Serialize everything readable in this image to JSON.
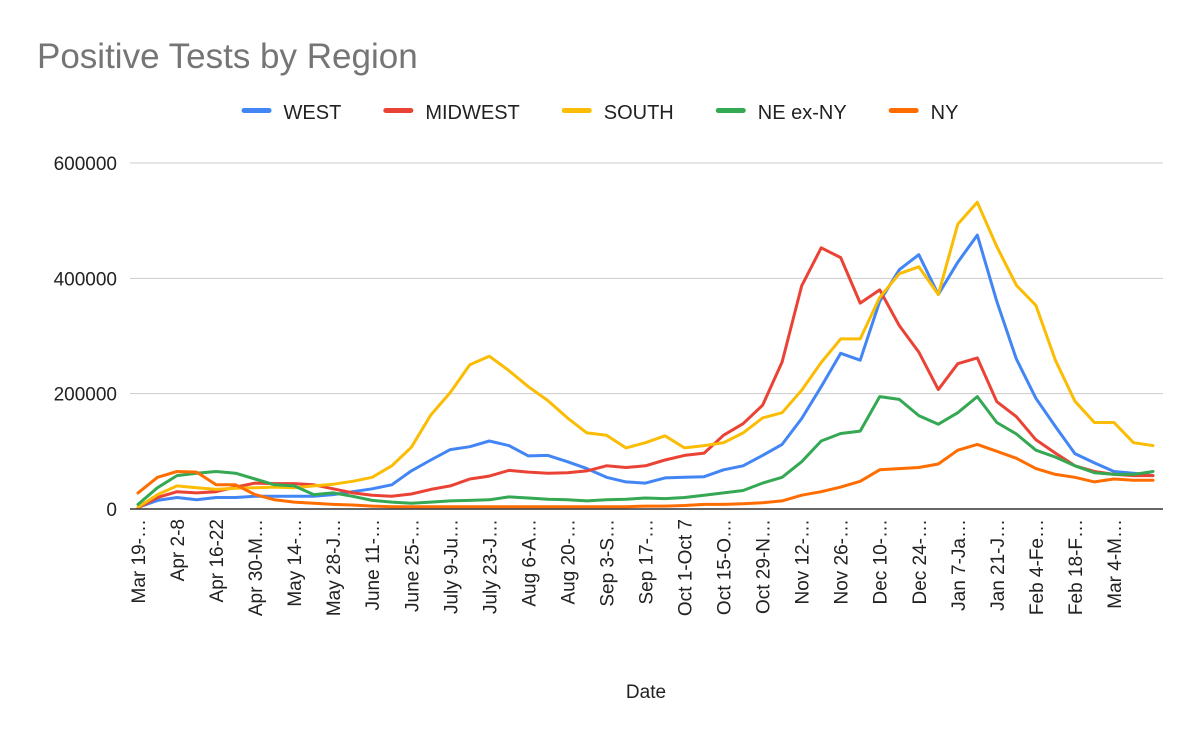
{
  "chart_data": {
    "type": "line",
    "title": "Positive Tests by Region",
    "xlabel": "Date",
    "ylabel": "",
    "ylim": [
      0,
      600000
    ],
    "yticks": [
      0,
      200000,
      400000,
      600000
    ],
    "ytick_labels": [
      "0",
      "200000",
      "400000",
      "600000"
    ],
    "x_tick_labels": [
      "Mar 19-…",
      "Apr 2-8",
      "Apr 16-22",
      "Apr 30-M…",
      "May 14-…",
      "May 28-J…",
      "June 11-…",
      "June 25-…",
      "July 9-Ju…",
      "July 23-J…",
      "Aug 6-A…",
      "Aug 20-…",
      "Sep 3-S…",
      "Sep 17-…",
      "Oct 1-Oct 7",
      "Oct 15-O…",
      "Oct 29-N…",
      "Nov 12-…",
      "Nov 26-…",
      "Dec 10-…",
      "Dec 24-…",
      "Jan 7-Ja…",
      "Jan 21-J…",
      "Feb 4-Fe…",
      "Feb 18-F…",
      "Mar 4-M…"
    ],
    "grid": true,
    "legend_position": "top",
    "series": [
      {
        "name": "WEST",
        "color": "#4285f4",
        "values": [
          3000,
          15000,
          20000,
          16000,
          20000,
          20000,
          22000,
          22000,
          22000,
          22000,
          25000,
          30000,
          35000,
          42000,
          66000,
          85000,
          103000,
          108000,
          118000,
          110000,
          92000,
          93000,
          82000,
          70000,
          55000,
          47000,
          45000,
          54000,
          55000,
          56000,
          68000,
          75000,
          93000,
          112000,
          157000,
          212000,
          270000,
          258000,
          360000,
          415000,
          441000,
          372000,
          428000,
          475000,
          360000,
          260000,
          192000,
          143000,
          96000,
          80000,
          65000,
          62000,
          58000
        ]
      },
      {
        "name": "MIDWEST",
        "color": "#ea4335",
        "values": [
          2000,
          20000,
          30000,
          28000,
          30000,
          38000,
          45000,
          44000,
          44000,
          42000,
          35000,
          28000,
          24000,
          22000,
          26000,
          34000,
          40000,
          52000,
          57000,
          67000,
          64000,
          62000,
          63000,
          66000,
          75000,
          72000,
          75000,
          85000,
          93000,
          97000,
          128000,
          148000,
          180000,
          255000,
          387000,
          453000,
          436000,
          357000,
          380000,
          318000,
          272000,
          207000,
          252000,
          262000,
          186000,
          160000,
          120000,
          97000,
          75000,
          65000,
          60000,
          58000,
          58000
        ]
      },
      {
        "name": "SOUTH",
        "color": "#fbbc04",
        "values": [
          3000,
          25000,
          40000,
          37000,
          34000,
          36000,
          37000,
          38000,
          37000,
          40000,
          43000,
          48000,
          55000,
          75000,
          107000,
          163000,
          202000,
          250000,
          265000,
          240000,
          212000,
          188000,
          158000,
          132000,
          128000,
          106000,
          115000,
          127000,
          106000,
          110000,
          115000,
          132000,
          158000,
          167000,
          206000,
          254000,
          295000,
          295000,
          367000,
          408000,
          420000,
          372000,
          494000,
          532000,
          455000,
          388000,
          353000,
          258000,
          187000,
          150000,
          150000,
          115000,
          110000
        ]
      },
      {
        "name": "NE ex-NY",
        "color": "#34a853",
        "values": [
          8000,
          37000,
          58000,
          62000,
          65000,
          62000,
          52000,
          42000,
          40000,
          25000,
          28000,
          22000,
          15000,
          12000,
          10000,
          12000,
          14000,
          15000,
          16000,
          21000,
          19000,
          17000,
          16000,
          14000,
          16000,
          17000,
          19000,
          18000,
          20000,
          24000,
          28000,
          32000,
          45000,
          55000,
          82000,
          118000,
          131000,
          135000,
          195000,
          190000,
          162000,
          147000,
          167000,
          195000,
          150000,
          130000,
          102000,
          90000,
          75000,
          63000,
          60000,
          60000,
          65000
        ]
      },
      {
        "name": "NY",
        "color": "#ff6d01",
        "values": [
          28000,
          55000,
          65000,
          64000,
          42000,
          42000,
          25000,
          16000,
          12000,
          10000,
          8000,
          7000,
          5000,
          4000,
          4000,
          4000,
          4000,
          4000,
          4000,
          4000,
          4000,
          4000,
          4000,
          4000,
          4000,
          4000,
          5000,
          5000,
          6000,
          8000,
          8000,
          9000,
          11000,
          14000,
          24000,
          30000,
          38000,
          48000,
          68000,
          70000,
          72000,
          78000,
          102000,
          112000,
          100000,
          88000,
          70000,
          60000,
          55000,
          47000,
          52000,
          50000,
          50000
        ]
      }
    ]
  }
}
